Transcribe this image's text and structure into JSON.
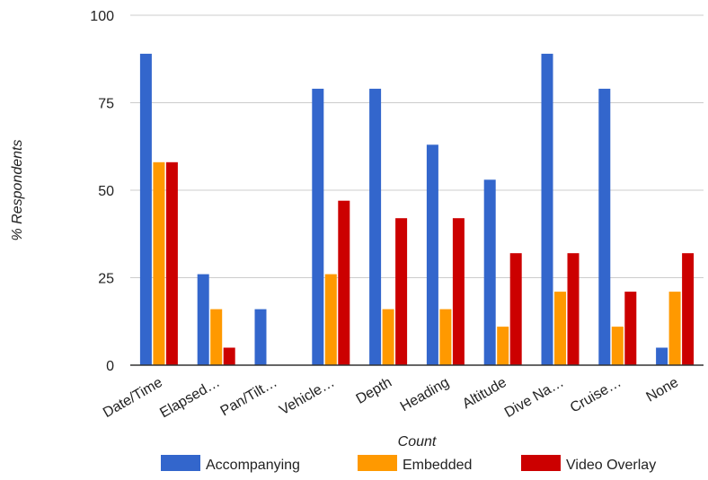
{
  "chart_data": {
    "type": "bar",
    "categories": [
      "Date/Time",
      "Elapsed…",
      "Pan/Tilt…",
      "Vehicle…",
      "Depth",
      "Heading",
      "Altitude",
      "Dive Na…",
      "Cruise…",
      "None"
    ],
    "series": [
      {
        "name": "Accompanying",
        "color": "#3366cc",
        "values": [
          89,
          26,
          16,
          79,
          79,
          63,
          53,
          89,
          79,
          5
        ]
      },
      {
        "name": "Embedded",
        "color": "#ff9900",
        "values": [
          58,
          16,
          0,
          26,
          16,
          16,
          11,
          21,
          11,
          21
        ]
      },
      {
        "name": "Video Overlay",
        "color": "#cc0000",
        "values": [
          58,
          5,
          0,
          47,
          42,
          42,
          32,
          32,
          21,
          32
        ]
      }
    ],
    "title": "",
    "xlabel": "Count",
    "ylabel": "% Respondents",
    "ylim": [
      0,
      100
    ],
    "yticks": [
      "0",
      "25",
      "50",
      "75",
      "100"
    ],
    "grid": true,
    "legend_position": "bottom"
  }
}
